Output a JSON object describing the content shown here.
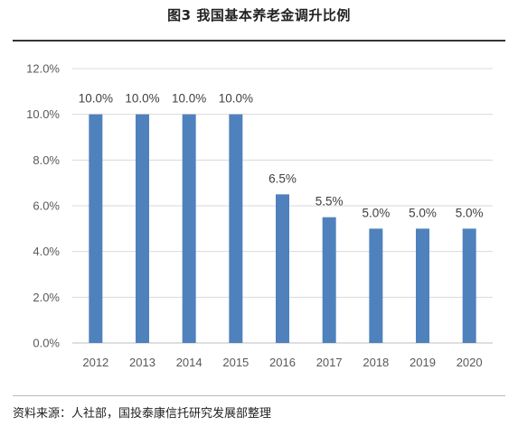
{
  "figure": {
    "title": "图3 我国基本养老金调升比例",
    "source": "资料来源：人社部，国投泰康信托研究发展部整理"
  },
  "chart_data": {
    "type": "bar",
    "title": "图3 我国基本养老金调升比例",
    "xlabel": "",
    "ylabel": "",
    "categories": [
      "2012",
      "2013",
      "2014",
      "2015",
      "2016",
      "2017",
      "2018",
      "2019",
      "2020"
    ],
    "values": [
      10.0,
      10.0,
      10.0,
      10.0,
      6.5,
      5.5,
      5.0,
      5.0,
      5.0
    ],
    "data_labels": [
      "10.0%",
      "10.0%",
      "10.0%",
      "10.0%",
      "6.5%",
      "5.5%",
      "5.0%",
      "5.0%",
      "5.0%"
    ],
    "ylim": [
      0,
      12
    ],
    "yticks": [
      0,
      2,
      4,
      6,
      8,
      10,
      12
    ],
    "ytick_labels": [
      "0.0%",
      "2.0%",
      "4.0%",
      "6.0%",
      "8.0%",
      "10.0%",
      "12.0%"
    ],
    "grid": true,
    "legend": "none",
    "bar_color": "#4F81BD",
    "grid_color": "#D9D9D9"
  }
}
